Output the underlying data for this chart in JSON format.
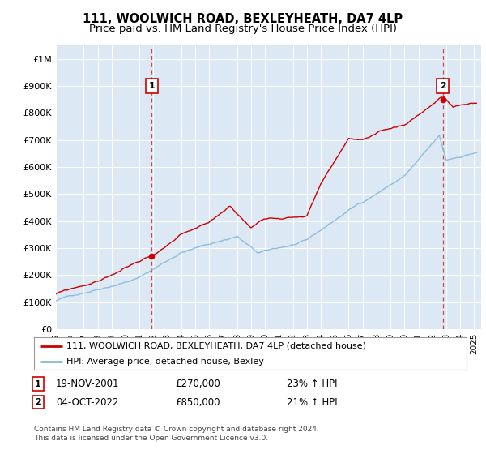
{
  "title": "111, WOOLWICH ROAD, BEXLEYHEATH, DA7 4LP",
  "subtitle": "Price paid vs. HM Land Registry's House Price Index (HPI)",
  "title_fontsize": 10.5,
  "subtitle_fontsize": 9.5,
  "bg_color": "#dce9f5",
  "grid_color": "#ffffff",
  "red_line_color": "#cc0000",
  "blue_line_color": "#85b8d8",
  "purchase1_x": 2001.875,
  "purchase1_price": 270000,
  "purchase2_x": 2022.75,
  "purchase2_price": 850000,
  "ylim": [
    0,
    1050000
  ],
  "yticks": [
    0,
    100000,
    200000,
    300000,
    400000,
    500000,
    600000,
    700000,
    800000,
    900000,
    1000000
  ],
  "ytick_labels": [
    "£0",
    "£100K",
    "£200K",
    "£300K",
    "£400K",
    "£500K",
    "£600K",
    "£700K",
    "£800K",
    "£900K",
    "£1M"
  ],
  "legend_line1": "111, WOOLWICH ROAD, BEXLEYHEATH, DA7 4LP (detached house)",
  "legend_line2": "HPI: Average price, detached house, Bexley",
  "footer": "Contains HM Land Registry data © Crown copyright and database right 2024.\nThis data is licensed under the Open Government Licence v3.0.",
  "xlim_left": 1995,
  "xlim_right": 2025.5
}
